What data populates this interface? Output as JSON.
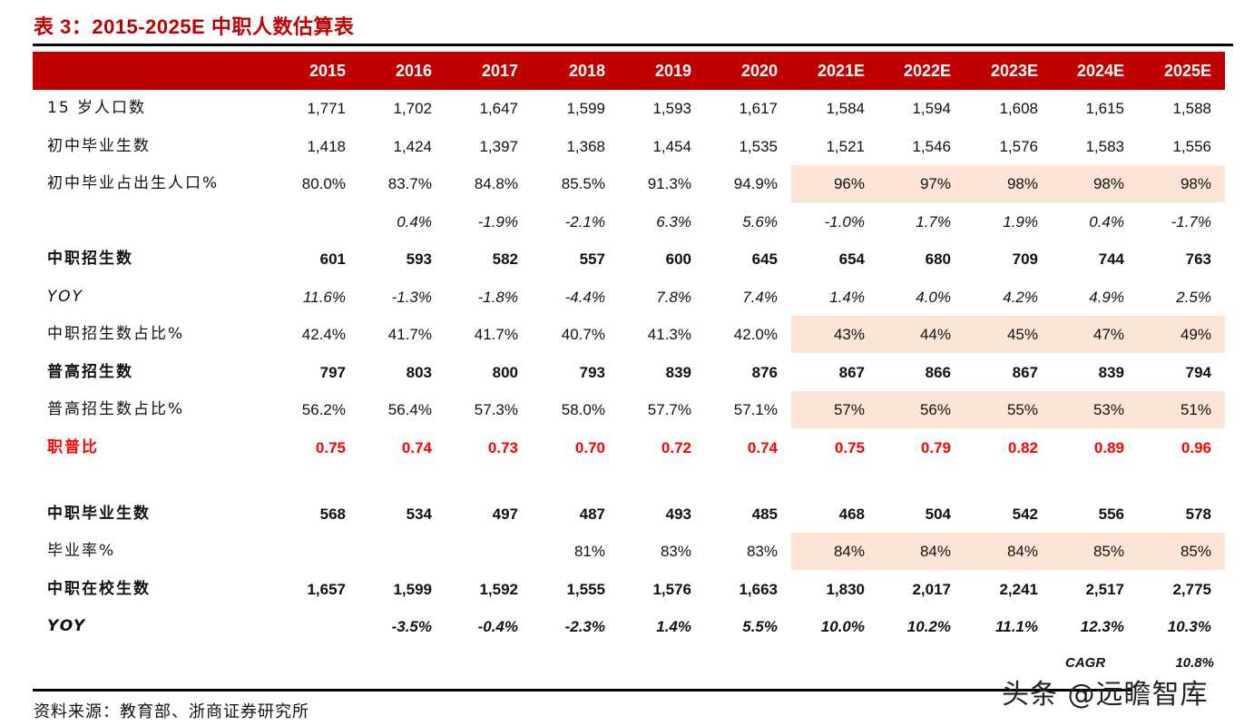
{
  "title": "表 3：2015-2025E 中职人数估算表",
  "header": {
    "columns": [
      "2015",
      "2016",
      "2017",
      "2018",
      "2019",
      "2020",
      "2021E",
      "2022E",
      "2023E",
      "2024E",
      "2025E"
    ]
  },
  "rows": [
    {
      "label": "15 岁人口数",
      "style": "normal",
      "shaded": false,
      "values": [
        "1,771",
        "1,702",
        "1,647",
        "1,599",
        "1,593",
        "1,617",
        "1,584",
        "1,594",
        "1,608",
        "1,615",
        "1,588"
      ]
    },
    {
      "label": "初中毕业生数",
      "style": "normal",
      "shaded": false,
      "values": [
        "1,418",
        "1,424",
        "1,397",
        "1,368",
        "1,454",
        "1,535",
        "1,521",
        "1,546",
        "1,576",
        "1,583",
        "1,556"
      ]
    },
    {
      "label": "初中毕业占出生人口%",
      "style": "normal",
      "shaded": true,
      "values": [
        "80.0%",
        "83.7%",
        "84.8%",
        "85.5%",
        "91.3%",
        "94.9%",
        "96%",
        "97%",
        "98%",
        "98%",
        "98%"
      ]
    },
    {
      "label": "",
      "style": "italic",
      "shaded": false,
      "values": [
        "",
        "0.4%",
        "-1.9%",
        "-2.1%",
        "6.3%",
        "5.6%",
        "-1.0%",
        "1.7%",
        "1.9%",
        "0.4%",
        "-1.7%"
      ]
    },
    {
      "label": "中职招生数",
      "style": "bold",
      "shaded": false,
      "values": [
        "601",
        "593",
        "582",
        "557",
        "600",
        "645",
        "654",
        "680",
        "709",
        "744",
        "763"
      ]
    },
    {
      "label": "YOY",
      "style": "italic",
      "shaded": false,
      "values": [
        "11.6%",
        "-1.3%",
        "-1.8%",
        "-4.4%",
        "7.8%",
        "7.4%",
        "1.4%",
        "4.0%",
        "4.2%",
        "4.9%",
        "2.5%"
      ]
    },
    {
      "label": "中职招生数占比%",
      "style": "normal",
      "shaded": true,
      "values": [
        "42.4%",
        "41.7%",
        "41.7%",
        "40.7%",
        "41.3%",
        "42.0%",
        "43%",
        "44%",
        "45%",
        "47%",
        "49%"
      ]
    },
    {
      "label": "普高招生数",
      "style": "bold",
      "shaded": false,
      "values": [
        "797",
        "803",
        "800",
        "793",
        "839",
        "876",
        "867",
        "866",
        "867",
        "839",
        "794"
      ]
    },
    {
      "label": "普高招生数占比%",
      "style": "normal",
      "shaded": true,
      "values": [
        "56.2%",
        "56.4%",
        "57.3%",
        "58.0%",
        "57.7%",
        "57.1%",
        "57%",
        "56%",
        "55%",
        "53%",
        "51%"
      ]
    },
    {
      "label": "职普比",
      "style": "red",
      "shaded": false,
      "values": [
        "0.75",
        "0.74",
        "0.73",
        "0.70",
        "0.72",
        "0.74",
        "0.75",
        "0.79",
        "0.82",
        "0.89",
        "0.96"
      ]
    },
    {
      "label": "中职毕业生数",
      "style": "bold",
      "shaded": false,
      "values": [
        "568",
        "534",
        "497",
        "487",
        "493",
        "485",
        "468",
        "504",
        "542",
        "556",
        "578"
      ]
    },
    {
      "label": "毕业率%",
      "style": "normal",
      "shaded": true,
      "values": [
        "",
        "",
        "",
        "81%",
        "83%",
        "83%",
        "84%",
        "84%",
        "84%",
        "85%",
        "85%"
      ]
    },
    {
      "label": "中职在校生数",
      "style": "bold",
      "shaded": false,
      "values": [
        "1,657",
        "1,599",
        "1,592",
        "1,555",
        "1,576",
        "1,663",
        "1,830",
        "2,017",
        "2,241",
        "2,517",
        "2,775"
      ]
    },
    {
      "label": "YOY",
      "style": "bolditalic",
      "shaded": false,
      "values": [
        "",
        "-3.5%",
        "-0.4%",
        "-2.3%",
        "1.4%",
        "5.5%",
        "10.0%",
        "10.2%",
        "11.1%",
        "12.3%",
        "10.3%"
      ]
    }
  ],
  "cagr": {
    "label": "CAGR",
    "value": "10.8%"
  },
  "source": "资料来源：教育部、浙商证券研究所",
  "watermark": "头条 @远瞻智库",
  "colors": {
    "header_bg": "#c00000",
    "title": "#c00000",
    "shade": "#fce4d6",
    "ratio_red": "#ff0000"
  }
}
